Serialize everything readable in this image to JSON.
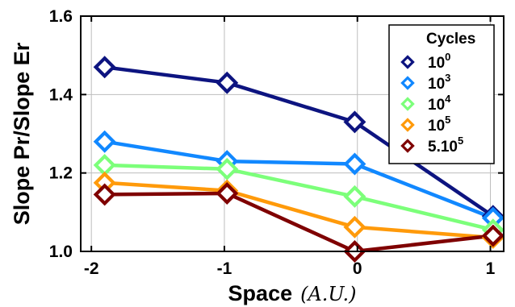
{
  "chart_data": {
    "type": "line",
    "xlabel": "Space",
    "xlabel_unit": "(A.U.)",
    "ylabel": "Slope Pr/Slope Er",
    "xlim": [
      -2.08,
      1.1
    ],
    "ylim": [
      1.0,
      1.6
    ],
    "x_ticks": [
      -2,
      -1,
      0,
      1
    ],
    "x_tick_labels": [
      "-2",
      "-1",
      "0",
      "1"
    ],
    "y_ticks": [
      1.0,
      1.2,
      1.4,
      1.6
    ],
    "y_tick_labels": [
      "1.0",
      "1.2",
      "1.4",
      "1.6"
    ],
    "grid": true,
    "legend": {
      "title": "Cycles",
      "placement": "top-right"
    },
    "x": [
      -1.9,
      -0.98,
      -0.02,
      1.02
    ],
    "series": [
      {
        "label_base": "10",
        "label_sup": "0",
        "color": "#0d1480",
        "values": [
          1.47,
          1.43,
          1.33,
          1.09
        ]
      },
      {
        "label_base": "10",
        "label_sup": "3",
        "color": "#1188ff",
        "values": [
          1.28,
          1.23,
          1.223,
          1.085
        ]
      },
      {
        "label_base": "10",
        "label_sup": "4",
        "color": "#7cff7a",
        "values": [
          1.22,
          1.21,
          1.14,
          1.055
        ]
      },
      {
        "label_base": "10",
        "label_sup": "5",
        "color": "#ff9a0a",
        "values": [
          1.175,
          1.155,
          1.062,
          1.035
        ]
      },
      {
        "label_base": "5.10",
        "label_sup": "5",
        "color": "#7f0000",
        "values": [
          1.145,
          1.148,
          1.0,
          1.04
        ]
      }
    ]
  }
}
